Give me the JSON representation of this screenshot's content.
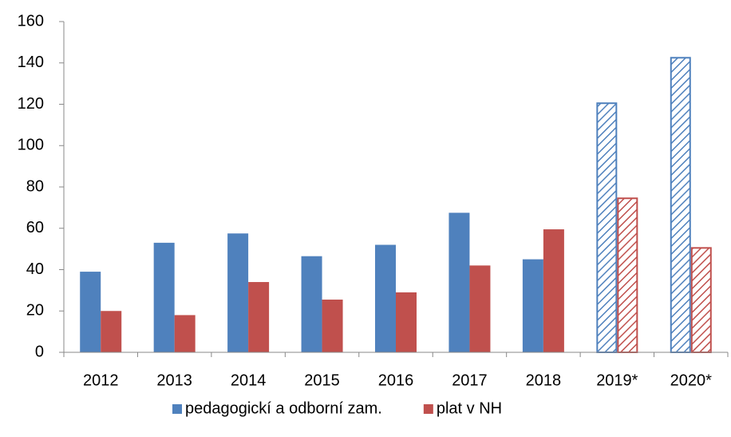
{
  "chart_data": {
    "type": "bar",
    "categories": [
      "2012",
      "2013",
      "2014",
      "2015",
      "2016",
      "2017",
      "2018",
      "2019*",
      "2020*"
    ],
    "series": [
      {
        "name": "pedagogickí a odborní zam.",
        "color": "#4f81bd",
        "values": [
          39,
          53,
          57.5,
          46.5,
          52,
          67.5,
          45,
          120.5,
          142.5
        ]
      },
      {
        "name": "plat v NH",
        "color": "#c0504d",
        "values": [
          20,
          18,
          34,
          25.5,
          29,
          42,
          59.5,
          74.5,
          50.5
        ]
      }
    ],
    "hatched": [
      false,
      false,
      false,
      false,
      false,
      false,
      false,
      true,
      true
    ],
    "ylim": [
      0,
      160
    ],
    "yticks": [
      0,
      20,
      40,
      60,
      80,
      100,
      120,
      140,
      160
    ],
    "grid": false,
    "legend": "bottom"
  }
}
